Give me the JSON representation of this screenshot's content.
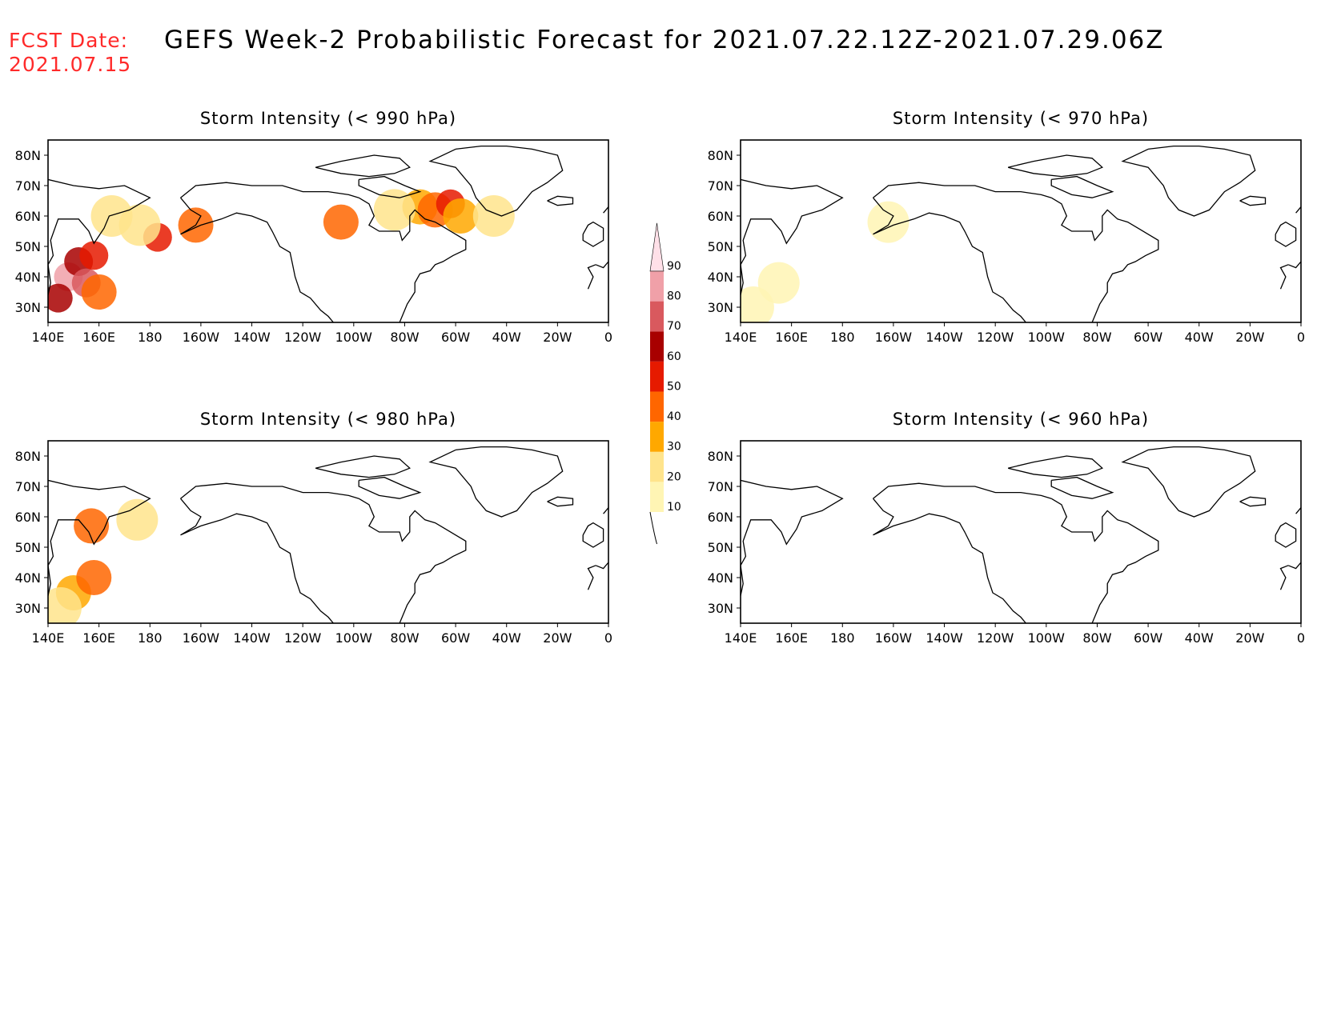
{
  "header": {
    "fcst_label": "FCST Date:",
    "fcst_date": "2021.07.15",
    "title": "GEFS Week-2 Probabilistic Forecast for 2021.07.22.12Z-2021.07.29.06Z"
  },
  "map_axes": {
    "x_ticks": [
      "140E",
      "160E",
      "180",
      "160W",
      "140W",
      "120W",
      "100W",
      "80W",
      "60W",
      "40W",
      "20W",
      "0"
    ],
    "y_ticks": [
      "80N",
      "70N",
      "60N",
      "50N",
      "40N",
      "30N"
    ],
    "lon_range": [
      140,
      360
    ],
    "lat_range": [
      25,
      85
    ]
  },
  "panels": [
    {
      "title": "Storm Intensity (< 990 hPa)",
      "regions": [
        {
          "lon": 148,
          "lat": 40,
          "prob": 80
        },
        {
          "lon": 152,
          "lat": 45,
          "prob": 60
        },
        {
          "lon": 155,
          "lat": 38,
          "prob": 70
        },
        {
          "lon": 158,
          "lat": 47,
          "prob": 50
        },
        {
          "lon": 144,
          "lat": 33,
          "prob": 60
        },
        {
          "lon": 160,
          "lat": 35,
          "prob": 40
        },
        {
          "lon": 183,
          "lat": 53,
          "prob": 50
        },
        {
          "lon": 176,
          "lat": 57,
          "prob": 20
        },
        {
          "lon": 165,
          "lat": 60,
          "prob": 20
        },
        {
          "lon": 198,
          "lat": 57,
          "prob": 40
        },
        {
          "lon": 286,
          "lat": 63,
          "prob": 30
        },
        {
          "lon": 292,
          "lat": 62,
          "prob": 40
        },
        {
          "lon": 298,
          "lat": 64,
          "prob": 50
        },
        {
          "lon": 302,
          "lat": 60,
          "prob": 30
        },
        {
          "lon": 276,
          "lat": 62,
          "prob": 20
        },
        {
          "lon": 315,
          "lat": 60,
          "prob": 20
        },
        {
          "lon": 255,
          "lat": 58,
          "prob": 40
        }
      ]
    },
    {
      "title": "Storm Intensity (< 970 hPa)",
      "regions": [
        {
          "lon": 145,
          "lat": 30,
          "prob": 10
        },
        {
          "lon": 155,
          "lat": 38,
          "prob": 10
        },
        {
          "lon": 198,
          "lat": 58,
          "prob": 10
        }
      ]
    },
    {
      "title": "Storm Intensity (< 980 hPa)",
      "regions": [
        {
          "lon": 150,
          "lat": 35,
          "prob": 30
        },
        {
          "lon": 145,
          "lat": 30,
          "prob": 20
        },
        {
          "lon": 158,
          "lat": 40,
          "prob": 40
        },
        {
          "lon": 157,
          "lat": 57,
          "prob": 40
        },
        {
          "lon": 175,
          "lat": 59,
          "prob": 20
        }
      ]
    },
    {
      "title": "Storm Intensity (< 960 hPa)",
      "regions": []
    }
  ],
  "colorbar": {
    "levels": [
      "10",
      "20",
      "30",
      "40",
      "50",
      "60",
      "70",
      "80",
      "90"
    ],
    "colors": [
      "#fff5b4",
      "#ffe48c",
      "#ffa800",
      "#ff6600",
      "#e61a00",
      "#a80000",
      "#d9595e",
      "#f0a0a8",
      "#ffe0e8"
    ]
  }
}
